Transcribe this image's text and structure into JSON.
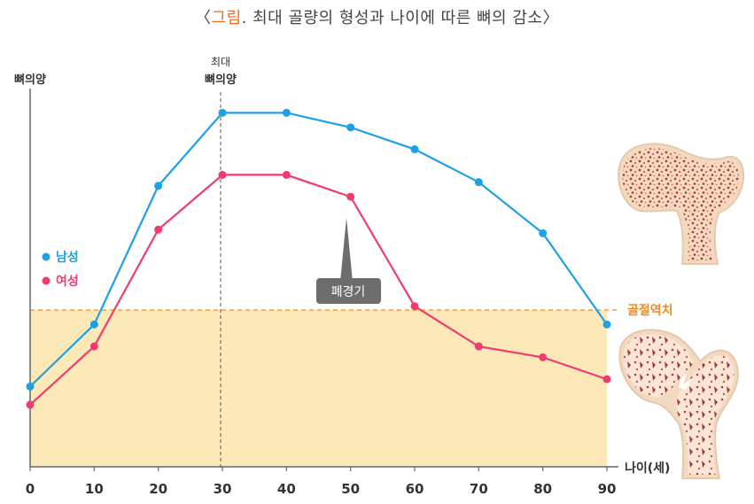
{
  "title": {
    "open_bracket": "〈",
    "accent": "그림",
    "text": ". 최대 골량의 형성과 나이에 따른 뼈의 감소",
    "close_bracket": "〉"
  },
  "colors": {
    "male": "#1ea0e6",
    "female": "#f03c6e",
    "threshold": "#f08a24",
    "shaded": "#fde9b8",
    "axis": "#666666",
    "callout": "#6d6d6d",
    "title_accent": "#f26b21"
  },
  "chart_data": {
    "type": "line",
    "x": [
      0,
      10,
      20,
      30,
      40,
      50,
      60,
      70,
      80,
      90
    ],
    "xlabel": "나이(세)",
    "ylabel": "뼈의양",
    "xlim": [
      0,
      90
    ],
    "ylim": [
      0,
      100
    ],
    "y_ticks_shown": false,
    "series": [
      {
        "name": "남성",
        "color": "#1ea0e6",
        "values": [
          22,
          39,
          77,
          97,
          97,
          93,
          87,
          78,
          64,
          39
        ]
      },
      {
        "name": "여성",
        "color": "#f03c6e",
        "values": [
          17,
          33,
          65,
          80,
          80,
          74,
          44,
          33,
          30,
          24
        ]
      }
    ],
    "threshold": {
      "label": "골절역치",
      "value": 44
    },
    "reference_line": {
      "x": 30,
      "label_lines": [
        "최대",
        "뼈의양"
      ]
    },
    "annotation": {
      "text": "폐경기",
      "x": 50,
      "series": "여성"
    },
    "legend": "left",
    "grid": false,
    "illustrations": [
      "healthy-femur-illustration",
      "osteoporotic-femur-illustration"
    ]
  }
}
